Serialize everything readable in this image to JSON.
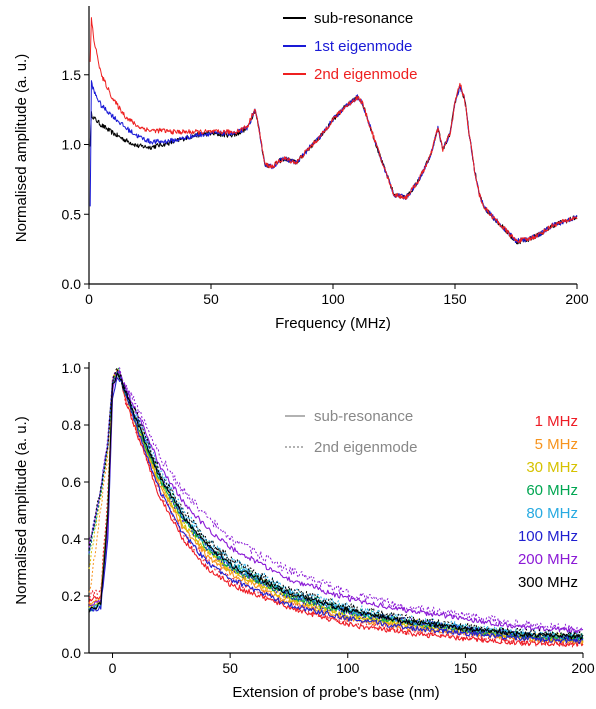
{
  "chart_data": [
    {
      "type": "line",
      "xlabel": "Frequency (MHz)",
      "ylabel": "Normalised amplitude (a. u.)",
      "xlim": [
        0,
        200
      ],
      "ylim": [
        0,
        1.95
      ],
      "xticks": [
        "0",
        "50",
        "100",
        "150",
        "200"
      ],
      "yticks": [
        "0.0",
        "0.5",
        "1.0",
        "1.5"
      ],
      "legend_position": "top-right",
      "series": [
        {
          "name": "sub-resonance",
          "color": "#000000",
          "x": [
            0.5,
            1,
            2,
            5,
            10,
            15,
            20,
            25,
            30,
            35,
            40,
            45,
            50,
            55,
            60,
            65,
            68,
            70,
            72,
            75,
            78,
            80,
            85,
            90,
            95,
            100,
            105,
            108,
            110,
            112,
            115,
            120,
            125,
            130,
            135,
            140,
            143,
            145,
            148,
            150,
            152,
            154,
            156,
            158,
            160,
            162,
            165,
            170,
            175,
            180,
            185,
            190,
            195,
            200
          ],
          "y": [
            1.0,
            1.22,
            1.19,
            1.14,
            1.08,
            1.03,
            0.99,
            0.98,
            1.0,
            1.02,
            1.05,
            1.07,
            1.08,
            1.07,
            1.07,
            1.12,
            1.25,
            1.08,
            0.86,
            0.84,
            0.88,
            0.9,
            0.87,
            0.97,
            1.06,
            1.18,
            1.27,
            1.31,
            1.34,
            1.3,
            1.14,
            0.88,
            0.64,
            0.62,
            0.74,
            0.92,
            1.12,
            0.96,
            1.08,
            1.3,
            1.42,
            1.32,
            1.05,
            0.82,
            0.64,
            0.55,
            0.49,
            0.4,
            0.3,
            0.32,
            0.36,
            0.42,
            0.45,
            0.48
          ]
        },
        {
          "name": "1st eigenmode",
          "color": "#1a1ad6",
          "x": [
            0.5,
            1,
            2,
            5,
            10,
            15,
            20,
            25,
            30,
            35,
            40,
            45,
            50,
            55,
            60,
            65,
            68,
            70,
            72,
            75,
            78,
            80,
            85,
            90,
            95,
            100,
            105,
            108,
            110,
            112,
            115,
            120,
            125,
            130,
            135,
            140,
            143,
            145,
            148,
            150,
            152,
            154,
            156,
            158,
            160,
            162,
            165,
            170,
            175,
            180,
            185,
            190,
            195,
            200
          ],
          "y": [
            0.55,
            1.45,
            1.38,
            1.28,
            1.2,
            1.12,
            1.06,
            1.02,
            1.02,
            1.03,
            1.05,
            1.07,
            1.08,
            1.08,
            1.08,
            1.12,
            1.25,
            1.08,
            0.86,
            0.84,
            0.88,
            0.9,
            0.87,
            0.97,
            1.06,
            1.18,
            1.27,
            1.31,
            1.34,
            1.3,
            1.14,
            0.88,
            0.64,
            0.62,
            0.74,
            0.92,
            1.12,
            0.96,
            1.08,
            1.3,
            1.42,
            1.32,
            1.05,
            0.82,
            0.64,
            0.55,
            0.49,
            0.4,
            0.31,
            0.32,
            0.36,
            0.42,
            0.45,
            0.48
          ]
        },
        {
          "name": "2nd eigenmode",
          "color": "#ee2020",
          "x": [
            0.5,
            1,
            2,
            5,
            10,
            15,
            20,
            25,
            30,
            35,
            40,
            45,
            50,
            55,
            60,
            65,
            68,
            70,
            72,
            75,
            78,
            80,
            85,
            90,
            95,
            100,
            105,
            108,
            110,
            112,
            115,
            120,
            125,
            130,
            135,
            140,
            143,
            145,
            148,
            150,
            152,
            154,
            156,
            158,
            160,
            162,
            165,
            170,
            175,
            180,
            185,
            190,
            195,
            200
          ],
          "y": [
            1.6,
            1.9,
            1.75,
            1.5,
            1.32,
            1.2,
            1.13,
            1.1,
            1.1,
            1.09,
            1.09,
            1.09,
            1.09,
            1.09,
            1.09,
            1.13,
            1.26,
            1.08,
            0.86,
            0.84,
            0.88,
            0.9,
            0.87,
            0.97,
            1.06,
            1.18,
            1.27,
            1.31,
            1.34,
            1.3,
            1.14,
            0.88,
            0.64,
            0.62,
            0.74,
            0.92,
            1.12,
            0.96,
            1.08,
            1.3,
            1.44,
            1.32,
            1.05,
            0.82,
            0.64,
            0.55,
            0.49,
            0.4,
            0.31,
            0.32,
            0.36,
            0.42,
            0.45,
            0.48
          ]
        }
      ]
    },
    {
      "type": "line",
      "xlabel": "Extension of probe's base (nm)",
      "ylabel": "Normalised amplitude (a. u.)",
      "xlim": [
        -10,
        200
      ],
      "ylim": [
        0,
        1.0
      ],
      "xticks": [
        "0",
        "50",
        "100",
        "150",
        "200"
      ],
      "yticks": [
        "0.0",
        "0.2",
        "0.4",
        "0.6",
        "0.8",
        "1.0"
      ],
      "legend_position": "top-right",
      "linestyle_legend": [
        {
          "label": "sub-resonance",
          "style": "solid"
        },
        {
          "label": "2nd eigenmode",
          "style": "dotted"
        }
      ],
      "series": [
        {
          "name": "1 MHz",
          "color": "#ee1c25",
          "x": [
            -10,
            -5,
            -2,
            0,
            2,
            3,
            5,
            10,
            20,
            30,
            40,
            50,
            75,
            100,
            125,
            150,
            175,
            200
          ],
          "y": [
            0.18,
            0.2,
            0.5,
            0.95,
            0.99,
            0.98,
            0.9,
            0.78,
            0.55,
            0.4,
            0.3,
            0.24,
            0.16,
            0.1,
            0.07,
            0.05,
            0.035,
            0.03
          ],
          "y2": [
            0.2,
            0.22,
            0.55,
            0.95,
            0.99,
            0.98,
            0.9,
            0.78,
            0.57,
            0.42,
            0.32,
            0.26,
            0.17,
            0.11,
            0.08,
            0.06,
            0.04,
            0.035
          ]
        },
        {
          "name": "5 MHz",
          "color": "#f7941d",
          "x": [
            -10,
            -5,
            -2,
            0,
            2,
            3,
            5,
            10,
            20,
            30,
            40,
            50,
            75,
            100,
            125,
            150,
            175,
            200
          ],
          "y": [
            0.17,
            0.19,
            0.5,
            0.95,
            0.99,
            0.98,
            0.92,
            0.8,
            0.59,
            0.44,
            0.34,
            0.28,
            0.18,
            0.12,
            0.09,
            0.07,
            0.05,
            0.04
          ],
          "y2": [
            0.2,
            0.5,
            0.7,
            0.95,
            0.99,
            0.98,
            0.92,
            0.81,
            0.6,
            0.45,
            0.35,
            0.29,
            0.19,
            0.13,
            0.1,
            0.08,
            0.06,
            0.05
          ]
        },
        {
          "name": "30 MHz",
          "color": "#d6c200",
          "x": [
            -10,
            -5,
            -2,
            0,
            2,
            3,
            5,
            10,
            20,
            30,
            40,
            50,
            75,
            100,
            125,
            150,
            175,
            200
          ],
          "y": [
            0.16,
            0.18,
            0.5,
            0.95,
            0.99,
            0.98,
            0.92,
            0.8,
            0.6,
            0.45,
            0.36,
            0.29,
            0.19,
            0.13,
            0.1,
            0.075,
            0.055,
            0.045
          ],
          "y2": [
            0.3,
            0.55,
            0.72,
            0.95,
            0.99,
            0.98,
            0.92,
            0.82,
            0.62,
            0.47,
            0.37,
            0.3,
            0.2,
            0.14,
            0.11,
            0.08,
            0.06,
            0.05
          ]
        },
        {
          "name": "60 MHz",
          "color": "#00a651",
          "x": [
            -10,
            -5,
            -2,
            0,
            2,
            3,
            5,
            10,
            20,
            30,
            40,
            50,
            75,
            100,
            125,
            150,
            175,
            200
          ],
          "y": [
            0.15,
            0.17,
            0.5,
            0.94,
            0.98,
            0.97,
            0.92,
            0.81,
            0.61,
            0.47,
            0.37,
            0.3,
            0.2,
            0.14,
            0.11,
            0.08,
            0.06,
            0.05
          ],
          "y2": [
            0.35,
            0.56,
            0.72,
            0.95,
            0.99,
            0.98,
            0.93,
            0.83,
            0.63,
            0.48,
            0.38,
            0.31,
            0.21,
            0.15,
            0.11,
            0.085,
            0.065,
            0.055
          ]
        },
        {
          "name": "80 MHz",
          "color": "#27aae1",
          "x": [
            -10,
            -5,
            -2,
            0,
            2,
            3,
            5,
            10,
            20,
            30,
            40,
            50,
            75,
            100,
            125,
            150,
            175,
            200
          ],
          "y": [
            0.15,
            0.17,
            0.45,
            0.93,
            0.98,
            0.97,
            0.93,
            0.82,
            0.62,
            0.48,
            0.38,
            0.31,
            0.21,
            0.15,
            0.11,
            0.09,
            0.065,
            0.055
          ],
          "y2": [
            0.35,
            0.57,
            0.73,
            0.95,
            0.99,
            0.98,
            0.93,
            0.84,
            0.64,
            0.5,
            0.4,
            0.33,
            0.22,
            0.16,
            0.12,
            0.09,
            0.07,
            0.06
          ]
        },
        {
          "name": "100 MHz",
          "color": "#1f1fd0",
          "x": [
            -10,
            -5,
            -2,
            0,
            2,
            3,
            5,
            10,
            20,
            30,
            40,
            50,
            75,
            100,
            125,
            150,
            175,
            200
          ],
          "y": [
            0.15,
            0.16,
            0.4,
            0.9,
            0.97,
            0.96,
            0.92,
            0.8,
            0.57,
            0.42,
            0.32,
            0.26,
            0.17,
            0.12,
            0.09,
            0.07,
            0.05,
            0.04
          ],
          "y2": [
            0.36,
            0.58,
            0.74,
            0.95,
            0.99,
            0.98,
            0.93,
            0.83,
            0.62,
            0.47,
            0.37,
            0.3,
            0.2,
            0.14,
            0.11,
            0.08,
            0.06,
            0.05
          ]
        },
        {
          "name": "200 MHz",
          "color": "#8b1ad6",
          "x": [
            -10,
            -5,
            -2,
            0,
            2,
            3,
            5,
            10,
            20,
            30,
            40,
            50,
            75,
            100,
            125,
            150,
            175,
            200
          ],
          "y": [
            0.16,
            0.18,
            0.45,
            0.92,
            0.98,
            0.98,
            0.94,
            0.85,
            0.66,
            0.53,
            0.44,
            0.37,
            0.26,
            0.19,
            0.15,
            0.12,
            0.09,
            0.075
          ],
          "y2": [
            0.38,
            0.58,
            0.75,
            0.96,
            0.99,
            0.99,
            0.95,
            0.87,
            0.69,
            0.57,
            0.48,
            0.4,
            0.29,
            0.21,
            0.16,
            0.13,
            0.1,
            0.08
          ]
        },
        {
          "name": "300 MHz",
          "color": "#000000",
          "x": [
            -10,
            -5,
            -2,
            0,
            2,
            3,
            5,
            10,
            20,
            30,
            40,
            50,
            75,
            100,
            125,
            150,
            175,
            200
          ],
          "y": [
            0.15,
            0.17,
            0.48,
            0.94,
            0.98,
            0.97,
            0.93,
            0.82,
            0.62,
            0.48,
            0.38,
            0.31,
            0.21,
            0.15,
            0.11,
            0.085,
            0.065,
            0.055
          ],
          "y2": [
            0.37,
            0.57,
            0.73,
            0.95,
            0.99,
            0.98,
            0.93,
            0.84,
            0.64,
            0.5,
            0.4,
            0.33,
            0.22,
            0.16,
            0.12,
            0.09,
            0.07,
            0.06
          ]
        }
      ]
    }
  ]
}
